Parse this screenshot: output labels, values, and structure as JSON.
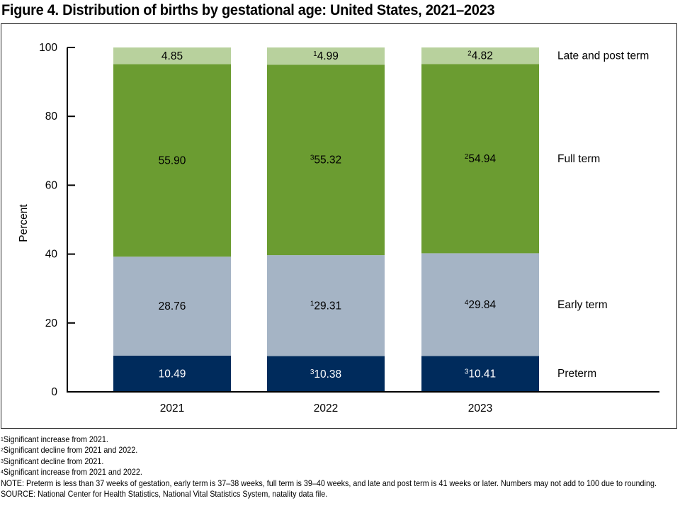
{
  "title": "Figure 4. Distribution of births by gestational age: United States, 2021–2023",
  "chart_data": {
    "type": "bar",
    "stacked": true,
    "title": "Figure 4. Distribution of births by gestational age: United States, 2021–2023",
    "xlabel": "",
    "ylabel": "Percent",
    "ylim": [
      0,
      100
    ],
    "yticks": [
      0,
      20,
      40,
      60,
      80,
      100
    ],
    "categories": [
      "2021",
      "2022",
      "2023"
    ],
    "legend_position": "right",
    "series": [
      {
        "name": "Preterm",
        "color": "#002b5c",
        "text_color": "#ffffff",
        "values": [
          10.49,
          10.38,
          10.41
        ],
        "labels": [
          "10.49",
          "10.38",
          "10.41"
        ],
        "footnotes": [
          "",
          "3",
          "3"
        ]
      },
      {
        "name": "Early term",
        "color": "#a5b4c5",
        "text_color": "#000000",
        "values": [
          28.76,
          29.31,
          29.84
        ],
        "labels": [
          "28.76",
          "29.31",
          "29.84"
        ],
        "footnotes": [
          "",
          "1",
          "4"
        ]
      },
      {
        "name": "Full term",
        "color": "#6b9c31",
        "text_color": "#000000",
        "values": [
          55.9,
          55.32,
          54.94
        ],
        "labels": [
          "55.90",
          "55.32",
          "54.94"
        ],
        "footnotes": [
          "",
          "3",
          "2"
        ]
      },
      {
        "name": "Late and post term",
        "color": "#b8d19d",
        "text_color": "#000000",
        "values": [
          4.85,
          4.99,
          4.82
        ],
        "labels": [
          "4.85",
          "4.99",
          "4.82"
        ],
        "footnotes": [
          "",
          "1",
          "2"
        ]
      }
    ]
  },
  "footnotes": [
    {
      "mark": "1",
      "text": "Significant increase from 2021."
    },
    {
      "mark": "2",
      "text": "Significant decline from 2021 and 2022."
    },
    {
      "mark": "3",
      "text": "Significant decline from 2021."
    },
    {
      "mark": "4",
      "text": "Significant increase from 2021 and 2022."
    }
  ],
  "note": "NOTE: Preterm is less than 37 weeks of gestation, early term is 37–38 weeks, full term is 39–40 weeks, and late and post term is 41 weeks or later. Numbers may not add to 100 due to rounding.",
  "source": "SOURCE: National Center for Health Statistics, National Vital Statistics System, natality data file."
}
